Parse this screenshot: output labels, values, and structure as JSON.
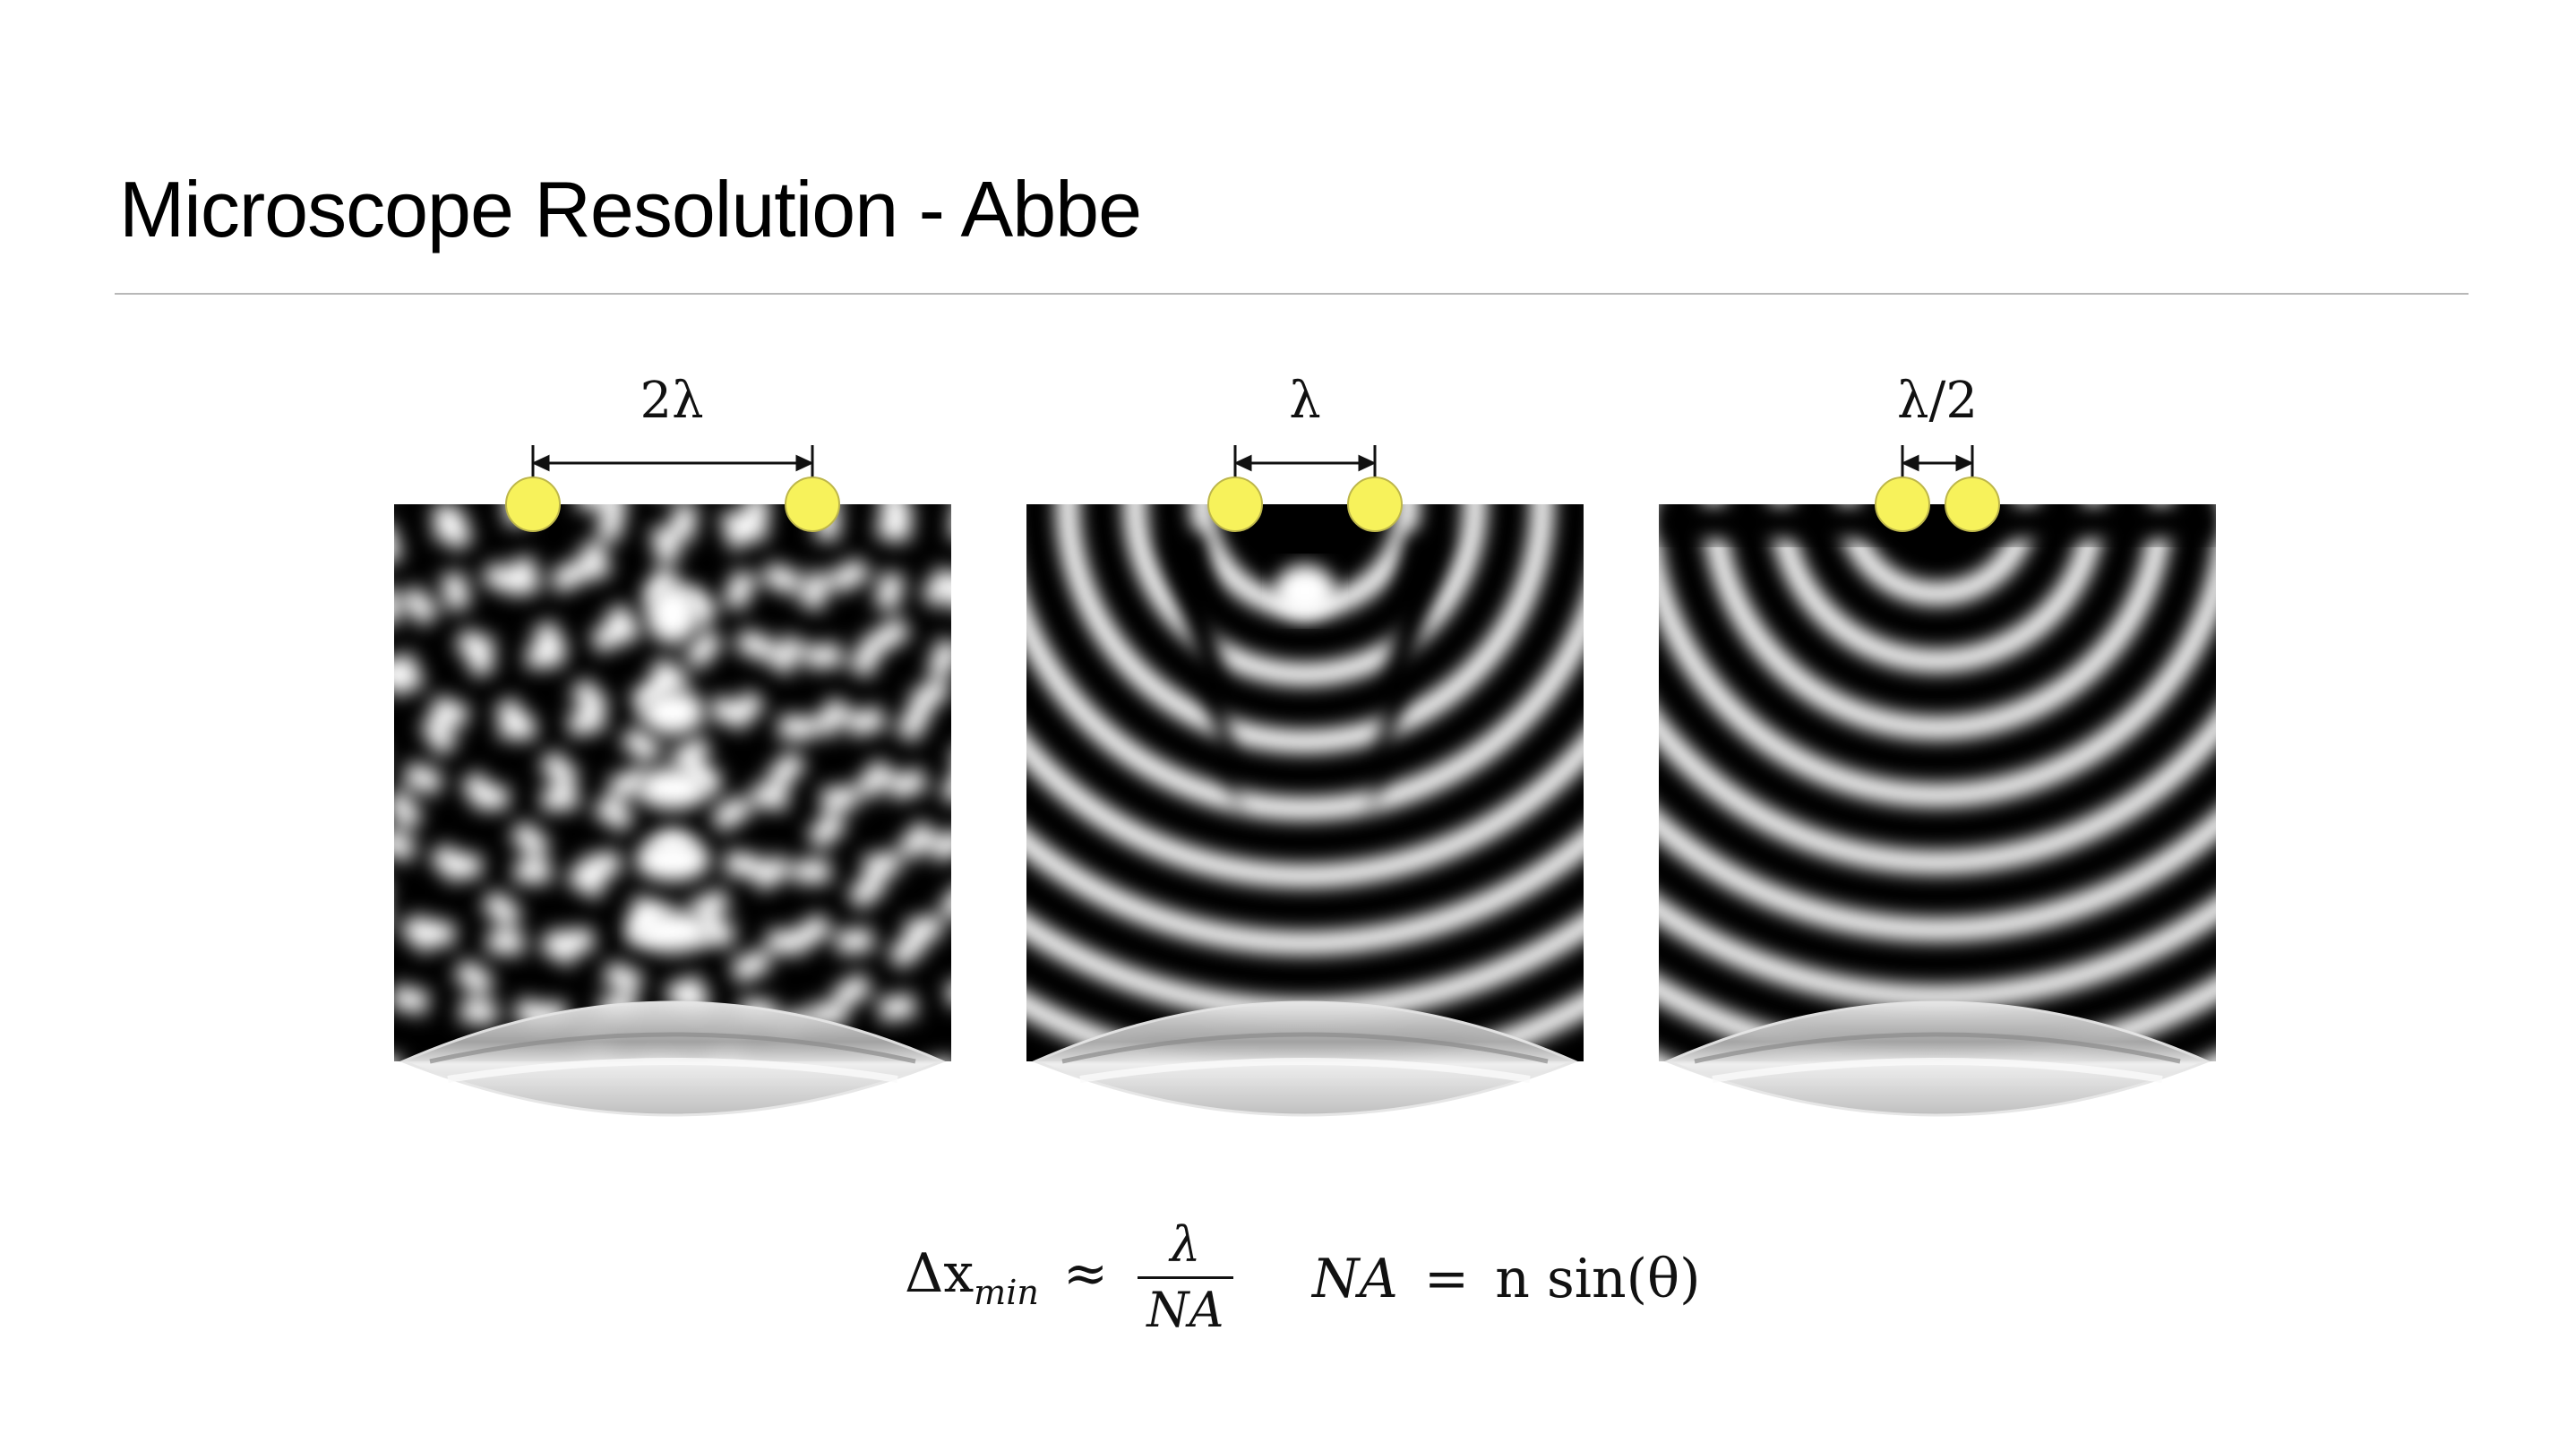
{
  "slide": {
    "title": "Microscope Resolution - Abbe"
  },
  "panels": [
    {
      "id": "panel-2lambda",
      "separation_label": "2λ",
      "separation_in_wavelengths": 2
    },
    {
      "id": "panel-lambda",
      "separation_label": "λ",
      "separation_in_wavelengths": 1
    },
    {
      "id": "panel-half-lambda",
      "separation_label": "λ/2",
      "separation_in_wavelengths": 0.5
    }
  ],
  "formulas": {
    "resolution_lhs": "Δx",
    "resolution_sub": "min",
    "approx": "≈",
    "resolution_num": "λ",
    "resolution_den": "NA",
    "na_lhs": "NA",
    "na_eq": "=",
    "na_rhs": "n sin(θ)"
  },
  "colors": {
    "source_dot": "#f7f25b",
    "background": "#000000",
    "fringe": "#ffffff",
    "lens": "#cfcfcf"
  }
}
